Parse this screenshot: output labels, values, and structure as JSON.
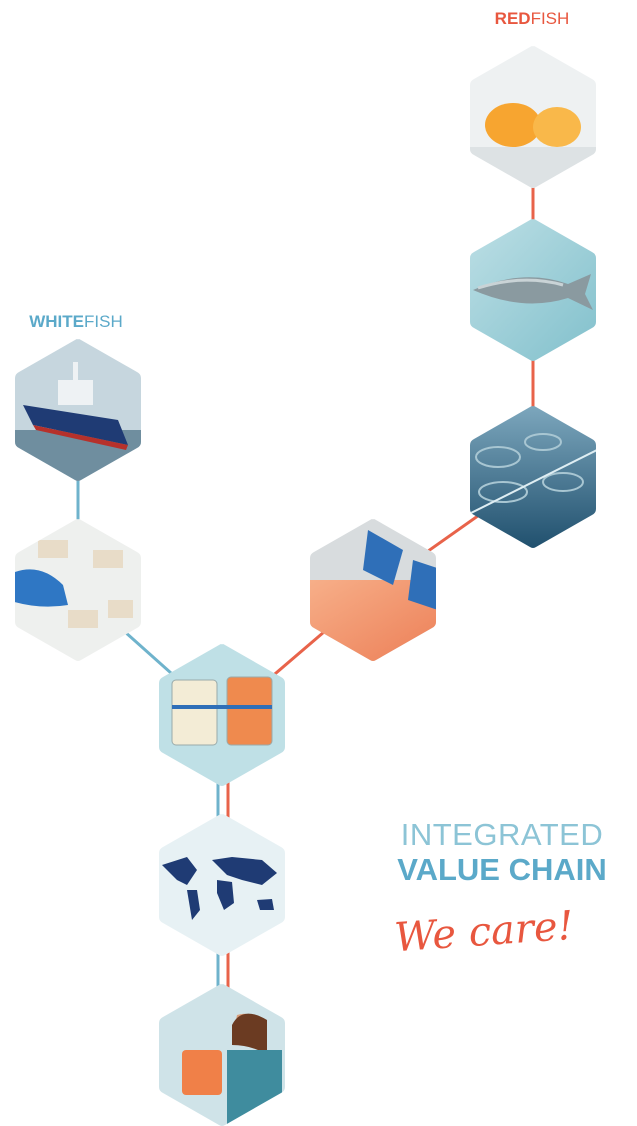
{
  "redfish": {
    "bold": "RED",
    "light": "FISH"
  },
  "whitefish": {
    "bold": "WHITE",
    "light": "FISH"
  },
  "tagline": {
    "line1": "INTEGRATED",
    "line2": "VALUE CHAIN",
    "signature": "We care!"
  }
}
